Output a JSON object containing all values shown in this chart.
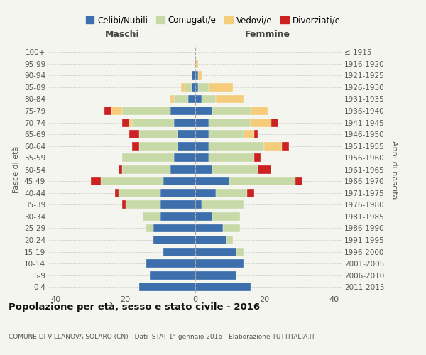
{
  "age_groups": [
    "0-4",
    "5-9",
    "10-14",
    "15-19",
    "20-24",
    "25-29",
    "30-34",
    "35-39",
    "40-44",
    "45-49",
    "50-54",
    "55-59",
    "60-64",
    "65-69",
    "70-74",
    "75-79",
    "80-84",
    "85-89",
    "90-94",
    "95-99",
    "100+"
  ],
  "birth_years": [
    "2011-2015",
    "2006-2010",
    "2001-2005",
    "1996-2000",
    "1991-1995",
    "1986-1990",
    "1981-1985",
    "1976-1980",
    "1971-1975",
    "1966-1970",
    "1961-1965",
    "1956-1960",
    "1951-1955",
    "1946-1950",
    "1941-1945",
    "1936-1940",
    "1931-1935",
    "1926-1930",
    "1921-1925",
    "1916-1920",
    "≤ 1915"
  ],
  "maschi": {
    "celibi": [
      16,
      13,
      14,
      9,
      12,
      12,
      10,
      10,
      10,
      9,
      7,
      6,
      5,
      5,
      6,
      7,
      2,
      1,
      1,
      0,
      0
    ],
    "coniugati": [
      0,
      0,
      0,
      0,
      0,
      2,
      5,
      10,
      12,
      18,
      14,
      15,
      11,
      11,
      12,
      14,
      4,
      2,
      0,
      0,
      0
    ],
    "vedovi": [
      0,
      0,
      0,
      0,
      0,
      0,
      0,
      0,
      0,
      0,
      0,
      0,
      0,
      0,
      1,
      3,
      1,
      1,
      0,
      0,
      0
    ],
    "divorziati": [
      0,
      0,
      0,
      0,
      0,
      0,
      0,
      1,
      1,
      3,
      1,
      0,
      2,
      3,
      2,
      2,
      0,
      0,
      0,
      0,
      0
    ]
  },
  "femmine": {
    "nubili": [
      16,
      12,
      14,
      12,
      9,
      8,
      5,
      2,
      6,
      10,
      5,
      4,
      4,
      4,
      4,
      5,
      2,
      1,
      1,
      0,
      0
    ],
    "coniugate": [
      0,
      0,
      0,
      2,
      2,
      5,
      8,
      12,
      9,
      19,
      13,
      13,
      16,
      10,
      12,
      11,
      4,
      3,
      0,
      0,
      0
    ],
    "vedove": [
      0,
      0,
      0,
      0,
      0,
      0,
      0,
      0,
      0,
      0,
      0,
      0,
      5,
      3,
      6,
      5,
      8,
      7,
      1,
      1,
      0
    ],
    "divorziate": [
      0,
      0,
      0,
      0,
      0,
      0,
      0,
      0,
      2,
      2,
      4,
      2,
      2,
      1,
      2,
      0,
      0,
      0,
      0,
      0,
      0
    ]
  },
  "colors": {
    "celibi_nubili": "#3d6fad",
    "coniugati_e": "#c8d9a8",
    "vedovi_e": "#f5cc7a",
    "divorziati_e": "#cc2222"
  },
  "xlim": 42,
  "title": "Popolazione per età, sesso e stato civile - 2016",
  "subtitle": "COMUNE DI VILLANOVA SOLARO (CN) - Dati ISTAT 1° gennaio 2016 - Elaborazione TUTTITALIA.IT",
  "ylabel_left": "Fasce di età",
  "ylabel_right": "Anni di nascita",
  "xlabel_left": "Maschi",
  "xlabel_right": "Femmine",
  "background": "#f5f5f0"
}
